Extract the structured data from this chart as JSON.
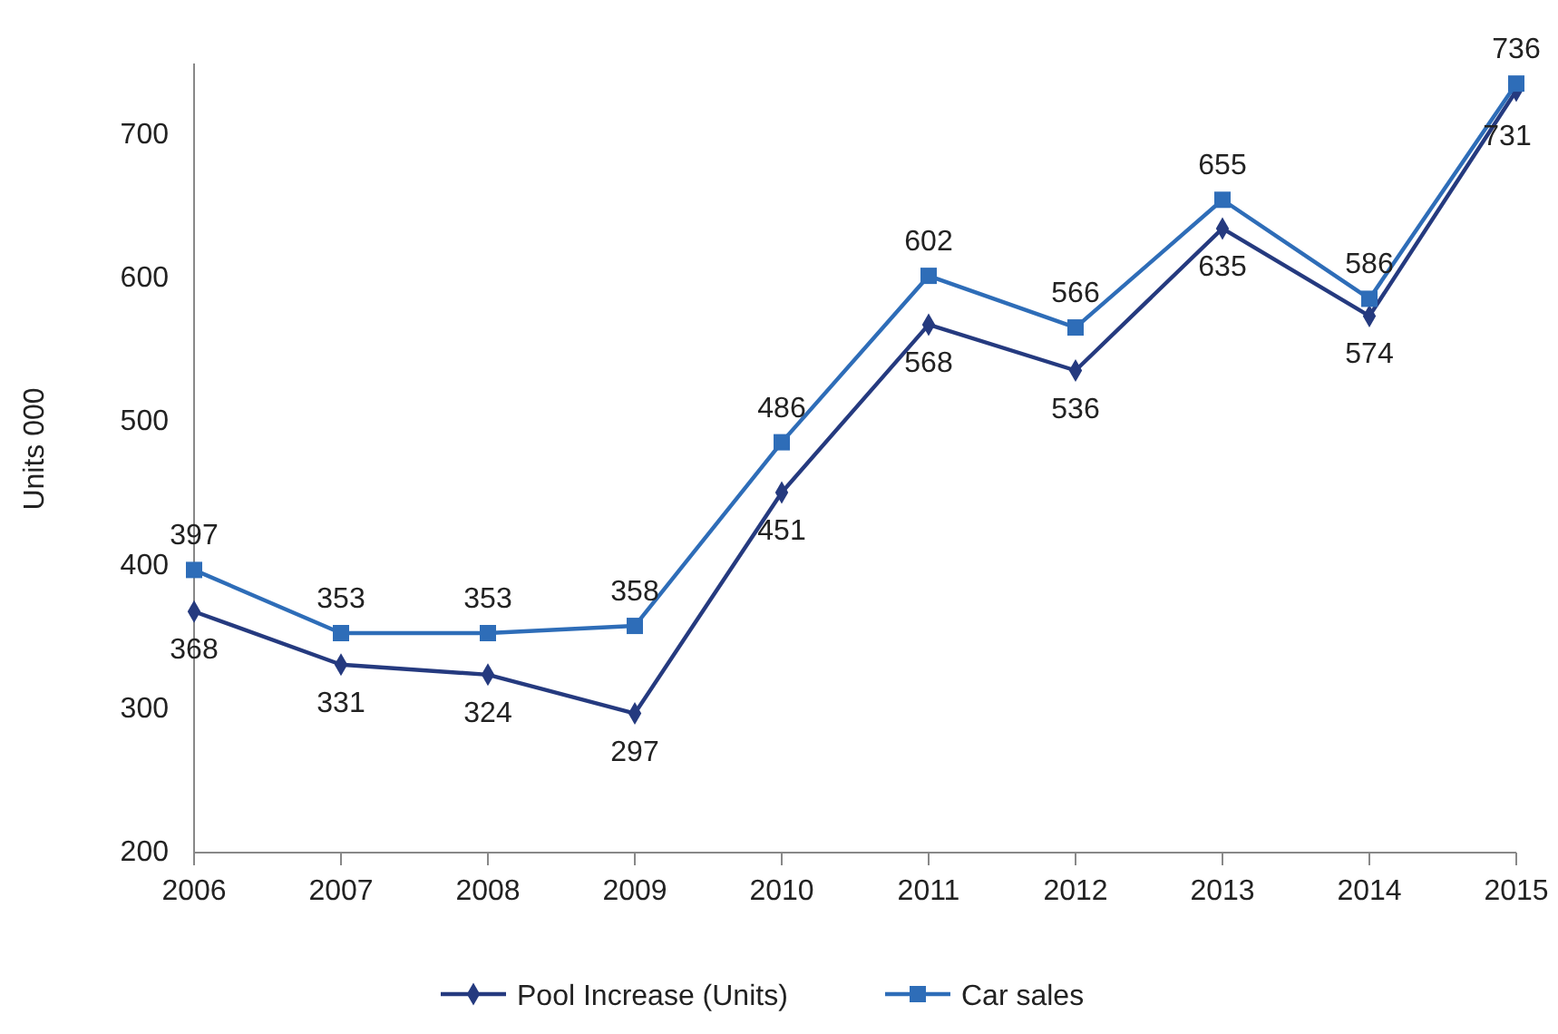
{
  "chart_data": {
    "type": "line",
    "ylabel": "Units 000",
    "categories": [
      "2006",
      "2007",
      "2008",
      "2009",
      "2010",
      "2011",
      "2012",
      "2013",
      "2014",
      "2015"
    ],
    "series": [
      {
        "name": "Pool Increase (Units)",
        "color": "#253a7f",
        "marker": "diamond",
        "values": [
          368,
          331,
          324,
          297,
          451,
          568,
          536,
          635,
          574,
          731
        ]
      },
      {
        "name": "Car sales",
        "color": "#2e6db8",
        "marker": "square",
        "values": [
          397,
          353,
          353,
          358,
          486,
          602,
          566,
          655,
          586,
          736
        ]
      }
    ],
    "ylim": [
      200,
      750
    ],
    "yticks": [
      200,
      300,
      400,
      500,
      600,
      700
    ],
    "grid": false,
    "legend": "bottom",
    "data_labels": true
  }
}
